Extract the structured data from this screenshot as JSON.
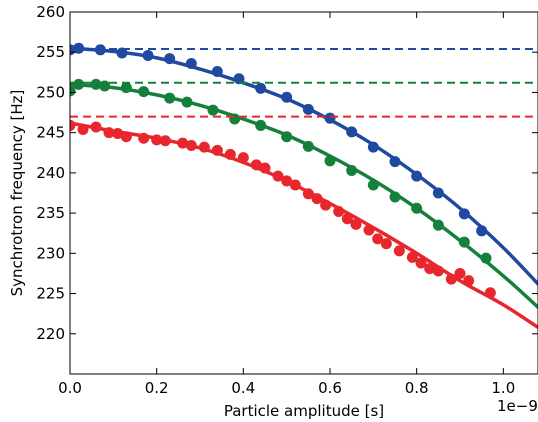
{
  "chart_data": {
    "type": "line",
    "title": "",
    "xlabel": "Particle amplitude [s]",
    "ylabel": "Synchrotron frequency [Hz]",
    "x_offset_text": "1e−9",
    "xlim": [
      0.0,
      1.08
    ],
    "ylim": [
      215,
      260
    ],
    "x_ticks": [
      0.0,
      0.2,
      0.4,
      0.6,
      0.8,
      1.0
    ],
    "x_tick_labels": [
      "0.0",
      "0.2",
      "0.4",
      "0.6",
      "0.8",
      "1.0"
    ],
    "y_ticks": [
      220,
      225,
      230,
      235,
      240,
      245,
      250,
      255,
      260
    ],
    "y_tick_labels": [
      "220",
      "225",
      "230",
      "235",
      "240",
      "245",
      "250",
      "255",
      "260"
    ],
    "grid": false,
    "legend": false,
    "series": [
      {
        "color": "#1f4aa0",
        "reference_level": 255.4,
        "marker_x": [
          0.0,
          0.02,
          0.07,
          0.12,
          0.18,
          0.23,
          0.28,
          0.34,
          0.39,
          0.44,
          0.5,
          0.55,
          0.6,
          0.65,
          0.7,
          0.75,
          0.8,
          0.85,
          0.91,
          0.95
        ],
        "marker_y": [
          255.3,
          255.5,
          255.3,
          254.9,
          254.6,
          254.2,
          253.6,
          252.6,
          251.7,
          250.5,
          249.4,
          247.9,
          246.8,
          245.1,
          243.2,
          241.4,
          239.6,
          237.5,
          234.9,
          232.8
        ],
        "fit_x": [
          0.0,
          0.1,
          0.2,
          0.3,
          0.4,
          0.5,
          0.6,
          0.7,
          0.8,
          0.9,
          1.0,
          1.08
        ],
        "fit_y": [
          255.5,
          255.1,
          254.3,
          252.9,
          251.2,
          249.2,
          246.6,
          243.5,
          239.8,
          235.6,
          230.7,
          226.2
        ]
      },
      {
        "color": "#14803c",
        "reference_level": 251.2,
        "marker_x": [
          0.0,
          0.02,
          0.06,
          0.08,
          0.13,
          0.17,
          0.23,
          0.27,
          0.33,
          0.38,
          0.44,
          0.5,
          0.55,
          0.6,
          0.65,
          0.7,
          0.75,
          0.8,
          0.85,
          0.91,
          0.96
        ],
        "marker_y": [
          250.2,
          251.0,
          251.0,
          250.8,
          250.6,
          250.1,
          249.3,
          248.8,
          247.8,
          246.7,
          245.9,
          244.5,
          243.3,
          241.5,
          240.3,
          238.5,
          237.0,
          235.6,
          233.5,
          231.4,
          229.4
        ],
        "fit_x": [
          0.0,
          0.1,
          0.2,
          0.3,
          0.4,
          0.5,
          0.6,
          0.7,
          0.8,
          0.9,
          1.0,
          1.08
        ],
        "fit_y": [
          251.0,
          250.6,
          249.7,
          248.4,
          246.7,
          244.7,
          242.1,
          239.1,
          235.6,
          231.6,
          227.2,
          223.3
        ]
      },
      {
        "color": "#e8262d",
        "reference_level": 247.0,
        "marker_x": [
          0.0,
          0.03,
          0.06,
          0.09,
          0.11,
          0.13,
          0.17,
          0.2,
          0.22,
          0.26,
          0.28,
          0.31,
          0.34,
          0.37,
          0.4,
          0.43,
          0.45,
          0.48,
          0.5,
          0.52,
          0.55,
          0.57,
          0.59,
          0.62,
          0.64,
          0.66,
          0.69,
          0.71,
          0.73,
          0.76,
          0.79,
          0.81,
          0.83,
          0.85,
          0.88,
          0.9,
          0.92,
          0.97
        ],
        "marker_y": [
          245.9,
          245.4,
          245.7,
          245.0,
          244.9,
          244.5,
          244.3,
          244.1,
          244.0,
          243.7,
          243.4,
          243.2,
          242.8,
          242.3,
          241.9,
          241.0,
          240.6,
          239.6,
          239.0,
          238.5,
          237.4,
          236.8,
          236.0,
          235.2,
          234.3,
          233.6,
          232.9,
          231.8,
          231.2,
          230.3,
          229.5,
          228.8,
          228.1,
          227.8,
          226.8,
          227.5,
          226.6,
          225.1
        ],
        "fit_x": [
          0.0,
          0.1,
          0.2,
          0.3,
          0.4,
          0.5,
          0.6,
          0.7,
          0.8,
          0.9,
          1.0,
          1.08
        ],
        "fit_y": [
          246.2,
          245.2,
          244.3,
          243.1,
          241.3,
          239.0,
          236.2,
          233.2,
          230.0,
          226.6,
          223.6,
          220.8
        ]
      }
    ]
  }
}
